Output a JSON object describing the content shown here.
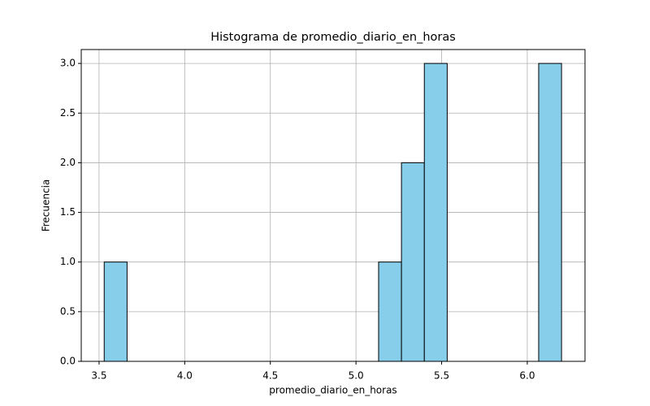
{
  "chart_data": {
    "type": "histogram",
    "title": "Histograma de promedio_diario_en_horas",
    "x_label": "promedio_diario_en_horas",
    "y_label": "Frecuencia",
    "bins": [
      3.53,
      3.6635,
      3.797,
      3.9305,
      4.064,
      4.1975,
      4.331,
      4.4645,
      4.598,
      4.7315,
      4.865,
      4.9985,
      5.132,
      5.2655,
      5.399,
      5.5325,
      5.666,
      5.7995,
      5.933,
      6.0665,
      6.2
    ],
    "values": [
      1,
      0,
      0,
      0,
      0,
      0,
      0,
      0,
      0,
      0,
      0,
      0,
      1,
      2,
      3,
      0,
      0,
      0,
      0,
      3
    ],
    "color": "#87ceeb",
    "edge_color": "#000000",
    "xlim": [
      3.396,
      6.337
    ],
    "xticks": [
      3.5,
      {
        "value": 4,
        "label": "4.0"
      },
      4.5,
      {
        "value": 5,
        "label": "5.0"
      },
      5.5,
      {
        "value": 6,
        "label": "6.0"
      }
    ],
    "ylim": [
      0,
      3.14
    ],
    "yticks": [
      {
        "value": 0,
        "label": "0.0"
      },
      0.5,
      {
        "value": 1,
        "label": "1.0"
      },
      1.5,
      {
        "value": 2,
        "label": "2.0"
      },
      2.5,
      {
        "value": 3,
        "label": "3.0"
      }
    ],
    "grid": true
  }
}
